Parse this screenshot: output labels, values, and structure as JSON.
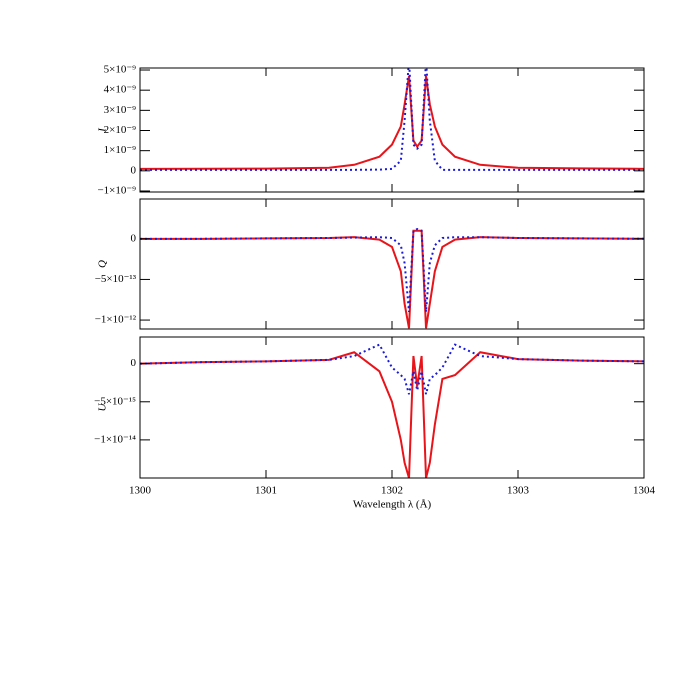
{
  "chart_data": [
    {
      "type": "line",
      "ylabel": "I",
      "x": [
        1300,
        1300.5,
        1301,
        1301.5,
        1301.7,
        1301.9,
        1302.0,
        1302.07,
        1302.1,
        1302.135,
        1302.17,
        1302.2,
        1302.235,
        1302.27,
        1302.3,
        1302.34,
        1302.4,
        1302.5,
        1302.7,
        1303,
        1303.5,
        1304
      ],
      "xlim": [
        1300,
        1304
      ],
      "ylim": [
        -1.05e-09,
        5.1e-09
      ],
      "yticks": [
        {
          "value": -1e-09,
          "label": "−1×10⁻⁹"
        },
        0,
        {
          "value": 1e-09,
          "label": "1×10⁻⁹"
        },
        {
          "value": 2e-09,
          "label": "2×10⁻⁹"
        },
        {
          "value": 3e-09,
          "label": "3×10⁻⁹"
        },
        {
          "value": 4e-09,
          "label": "4×10⁻⁹"
        },
        {
          "value": 5e-09,
          "label": "5×10⁻⁹"
        }
      ],
      "series": [
        {
          "color": "#e8141a",
          "style": "solid",
          "values": [
            1e-10,
            1.05e-10,
            1.1e-10,
            1.5e-10,
            3e-10,
            7e-10,
            1.3e-09,
            2.2e-09,
            3.3e-09,
            4.7e-09,
            1.5e-09,
            1.2e-09,
            1.5e-09,
            4.7e-09,
            3.3e-09,
            2.2e-09,
            1.3e-09,
            7e-10,
            3e-10,
            1.5e-10,
            1.2e-10,
            1e-10
          ]
        },
        {
          "color": "#1a1adc",
          "style": "dotted",
          "values": [
            5e-11,
            5e-11,
            5e-11,
            5e-11,
            5e-11,
            6e-11,
            1e-10,
            5e-10,
            2.5e-09,
            5.5e-09,
            1.3e-09,
            1.1e-09,
            1.3e-09,
            5.5e-09,
            2.5e-09,
            5e-10,
            5e-11,
            5e-11,
            5e-11,
            5e-11,
            5e-11,
            5e-11
          ]
        }
      ]
    },
    {
      "type": "line",
      "ylabel": "Q",
      "x": [
        1300,
        1300.5,
        1301,
        1301.5,
        1301.7,
        1301.9,
        1302.0,
        1302.07,
        1302.1,
        1302.135,
        1302.17,
        1302.2,
        1302.235,
        1302.27,
        1302.3,
        1302.34,
        1302.4,
        1302.5,
        1302.7,
        1303,
        1303.5,
        1304
      ],
      "xlim": [
        1300,
        1304
      ],
      "ylim": [
        -1.11e-12,
        4.9e-13
      ],
      "yticks": [
        {
          "value": -1e-12,
          "label": "−1×10⁻¹²"
        },
        {
          "value": -5e-13,
          "label": "−5×10⁻¹³"
        },
        0
      ],
      "series": [
        {
          "color": "#e8141a",
          "style": "solid",
          "values": [
            0,
            0,
            5e-15,
            1e-14,
            2e-14,
            -1e-14,
            -1e-13,
            -4e-13,
            -8e-13,
            -1.1e-12,
            1e-13,
            1e-13,
            1e-13,
            -1.1e-12,
            -8e-13,
            -4e-13,
            -1e-13,
            -1e-14,
            2e-14,
            1e-14,
            5e-15,
            0
          ]
        },
        {
          "color": "#1a1adc",
          "style": "dotted",
          "values": [
            0,
            0,
            5e-15,
            1e-14,
            1.5e-14,
            2e-14,
            1e-14,
            -8e-14,
            -3e-13,
            -9e-13,
            1e-13,
            1.2e-13,
            1e-13,
            -9e-13,
            -3e-13,
            -8e-14,
            1e-14,
            2e-14,
            2e-14,
            1e-14,
            5e-15,
            0
          ]
        }
      ]
    },
    {
      "type": "line",
      "ylabel": "U",
      "xlabel": "Wavelength λ (Å)",
      "x": [
        1300,
        1300.5,
        1301,
        1301.5,
        1301.7,
        1301.9,
        1302.0,
        1302.07,
        1302.1,
        1302.135,
        1302.17,
        1302.2,
        1302.235,
        1302.27,
        1302.3,
        1302.34,
        1302.4,
        1302.5,
        1302.7,
        1303,
        1303.5,
        1304
      ],
      "xlim": [
        1300,
        1304
      ],
      "xticks": [
        1300,
        1301,
        1302,
        1303,
        1304
      ],
      "ylim": [
        -1.5e-14,
        3.5e-15
      ],
      "yticks": [
        {
          "value": -1e-14,
          "label": "−1×10⁻¹⁴"
        },
        {
          "value": -5e-15,
          "label": "−5×10⁻¹⁵"
        },
        0
      ],
      "series": [
        {
          "color": "#e8141a",
          "style": "solid",
          "values": [
            0,
            2e-16,
            3e-16,
            5e-16,
            1.5e-15,
            -1e-15,
            -5e-15,
            -1e-14,
            -1.3e-14,
            -1.5e-14,
            1e-15,
            -3e-15,
            1e-15,
            -1.5e-14,
            -1.3e-14,
            -8e-15,
            -2e-15,
            -1.5e-15,
            1.5e-15,
            6e-16,
            4e-16,
            3e-16
          ]
        },
        {
          "color": "#1a1adc",
          "style": "dotted",
          "values": [
            0,
            2e-16,
            3e-16,
            5e-16,
            1e-15,
            2.5e-15,
            -5e-16,
            -1.5e-15,
            -2e-15,
            -4e-15,
            -1e-15,
            -3.5e-15,
            -1e-15,
            -4e-15,
            -2e-15,
            -1.5e-15,
            -5e-16,
            2.5e-15,
            1e-15,
            6e-16,
            4e-16,
            3e-16
          ]
        }
      ]
    }
  ]
}
